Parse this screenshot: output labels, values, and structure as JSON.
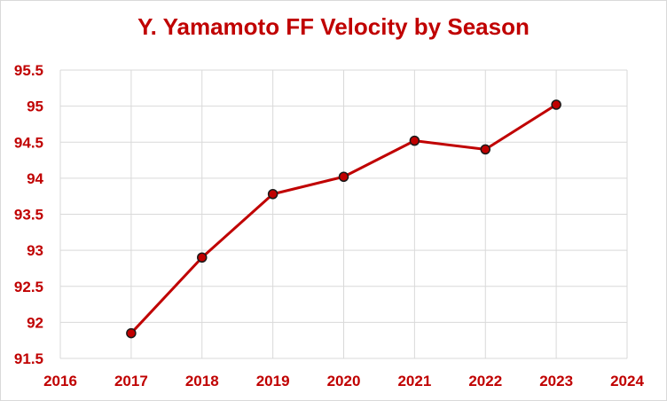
{
  "chart_data": {
    "type": "line",
    "title": "Y. Yamamoto FF Velocity by Season",
    "xlabel": "",
    "ylabel": "",
    "xlim": [
      2016,
      2024
    ],
    "ylim": [
      91.5,
      95.5
    ],
    "x_ticks": [
      "2016",
      "2017",
      "2018",
      "2019",
      "2020",
      "2021",
      "2022",
      "2023",
      "2024"
    ],
    "y_ticks": [
      "91.5",
      "92",
      "92.5",
      "93",
      "93.5",
      "94",
      "94.5",
      "95",
      "95.5"
    ],
    "grid": true,
    "legend": "none",
    "series": [
      {
        "x": [
          2017,
          2018,
          2019,
          2020,
          2021,
          2022,
          2023
        ],
        "values": [
          91.85,
          92.9,
          93.78,
          94.02,
          94.52,
          94.4,
          95.02
        ]
      }
    ]
  },
  "colors": {
    "accent": "#c00000",
    "marker_fill": "#c00000",
    "marker_stroke": "#1a1a1a",
    "grid": "#d9d9d9",
    "text": "#c00000"
  }
}
